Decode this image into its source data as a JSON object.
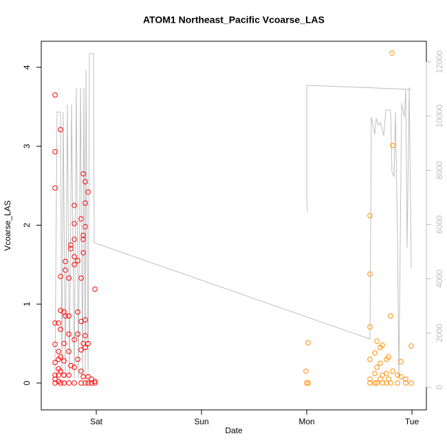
{
  "chart_data": {
    "type": "scatter",
    "title": "ATOM1 Northeast_Pacific Vcoarse_LAS",
    "xlabel": "Date",
    "ylabel": "Vcoarse_LAS",
    "xlim": [
      -0.523,
      3.137
    ],
    "xticks": [
      {
        "value": 0,
        "label": "Sat"
      },
      {
        "value": 1,
        "label": "Sun"
      },
      {
        "value": 2,
        "label": "Mon"
      },
      {
        "value": 3,
        "label": "Tue"
      }
    ],
    "ylim": [
      -0.34,
      4.33
    ],
    "yticks": [
      0,
      1,
      2,
      3,
      4
    ],
    "y2lim": [
      -837,
      12760
    ],
    "y2ticks": [
      0,
      2000,
      4000,
      6000,
      8000,
      10000,
      12000
    ],
    "series": [
      {
        "type": "line",
        "axis": "y2",
        "color": "#bebebe",
        "x": [
          -0.392,
          -0.373,
          -0.34,
          -0.327,
          -0.314,
          -0.294,
          -0.275,
          -0.255,
          -0.235,
          -0.209,
          -0.19,
          -0.17,
          -0.15,
          -0.131,
          -0.118,
          -0.105,
          -0.098,
          -0.078,
          -0.065,
          -0.026,
          -0.02,
          2.601,
          2.614,
          2.647,
          2.66,
          2.68,
          2.699,
          2.732,
          2.752,
          2.797,
          2.81,
          2.83,
          2.843,
          2.863,
          2.876,
          2.889,
          2.902,
          2.928,
          2.941,
          2.954,
          2.974,
          2.993,
          null,
          2.007,
          2.0,
          2.0,
          2.993
        ],
        "values": [
          584,
          10148,
          10148,
          330,
          10148,
          330,
          10427,
          330,
          10427,
          330,
          11036,
          330,
          11036,
          330,
          11036,
          330,
          11696,
          330,
          12305,
          12305,
          5328,
          1776,
          9970,
          9336,
          9920,
          9666,
          9767,
          9285,
          10224,
          10224,
          7941,
          7763,
          10148,
          5505,
          330,
          5480,
          10478,
          9970,
          10985,
          5150,
          11061,
          4389,
          null,
          6469,
          6926,
          11137,
          10985
        ]
      },
      {
        "type": "scatter",
        "color": "#ff0000",
        "x": [
          -0.392,
          -0.392,
          -0.392,
          -0.392,
          -0.392,
          -0.392,
          -0.392,
          -0.392,
          -0.392,
          -0.359,
          -0.359,
          -0.359,
          -0.359,
          -0.359,
          -0.359,
          -0.34,
          -0.34,
          -0.34,
          -0.34,
          -0.34,
          -0.34,
          -0.34,
          -0.307,
          -0.307,
          -0.307,
          -0.307,
          -0.307,
          -0.294,
          -0.294,
          -0.294,
          -0.261,
          -0.261,
          -0.261,
          -0.261,
          -0.261,
          -0.261,
          -0.242,
          -0.242,
          -0.242,
          -0.209,
          -0.209,
          -0.209,
          -0.209,
          -0.209,
          -0.209,
          -0.209,
          -0.209,
          -0.176,
          -0.176,
          -0.176,
          -0.176,
          -0.144,
          -0.144,
          -0.144,
          -0.144,
          -0.144,
          -0.144,
          -0.124,
          -0.124,
          -0.124,
          -0.124,
          -0.124,
          -0.124,
          -0.105,
          -0.105,
          -0.105,
          -0.105,
          -0.105,
          -0.105,
          -0.105,
          -0.078,
          -0.078,
          -0.078,
          -0.078,
          -0.046,
          -0.046,
          -0.013,
          -0.013,
          -0.013
        ],
        "values": [
          3.65,
          2.93,
          2.47,
          0.76,
          0.49,
          0.26,
          0.1,
          0.05,
          0.0,
          0.76,
          0.4,
          0.3,
          0.18,
          0.1,
          0.02,
          3.21,
          1.35,
          0.92,
          0.68,
          0.33,
          0.15,
          0.0,
          0.9,
          0.5,
          0.28,
          0.1,
          0.0,
          1.54,
          1.43,
          0.85,
          1.33,
          0.85,
          0.62,
          0.4,
          0.1,
          0.0,
          1.75,
          1.7,
          0.22,
          2.25,
          2.02,
          1.82,
          1.6,
          1.5,
          0.55,
          0.2,
          0.0,
          1.55,
          0.9,
          0.62,
          0.3,
          2.08,
          1.33,
          0.78,
          0.42,
          0.15,
          0.0,
          2.65,
          1.87,
          1.82,
          1.65,
          0.5,
          0.08,
          2.55,
          2.28,
          1.98,
          0.8,
          0.6,
          0.45,
          0.0,
          2.42,
          0.5,
          0.08,
          0.0,
          0.05,
          0.0,
          1.19,
          0.02,
          0.0
        ]
      },
      {
        "type": "scatter",
        "color": "#ff8c00",
        "x": [
          2.013,
          1.993,
          2.0,
          2.013,
          2.601,
          2.601,
          2.601,
          2.601,
          2.601,
          2.601,
          2.647,
          2.647,
          2.647,
          2.667,
          2.667,
          2.667,
          2.699,
          2.699,
          2.699,
          2.719,
          2.719,
          2.719,
          2.758,
          2.758,
          2.758,
          2.778,
          2.778,
          2.797,
          2.797,
          2.817,
          2.81,
          2.817,
          2.863,
          2.863,
          2.895,
          2.895,
          2.941,
          2.941,
          2.993,
          2.993
        ],
        "values": [
          0.51,
          0.15,
          0.0,
          0.0,
          2.12,
          1.38,
          0.71,
          0.3,
          0.05,
          0.0,
          0.38,
          0.12,
          0.0,
          0.53,
          0.2,
          0.0,
          0.45,
          0.25,
          0.05,
          0.48,
          0.1,
          0.0,
          0.3,
          0.12,
          0.0,
          0.33,
          0.05,
          0.85,
          0.0,
          3.01,
          4.18,
          0.15,
          0.1,
          0.0,
          0.27,
          0.08,
          0.05,
          0.0,
          0.47,
          0.0
        ]
      }
    ]
  }
}
